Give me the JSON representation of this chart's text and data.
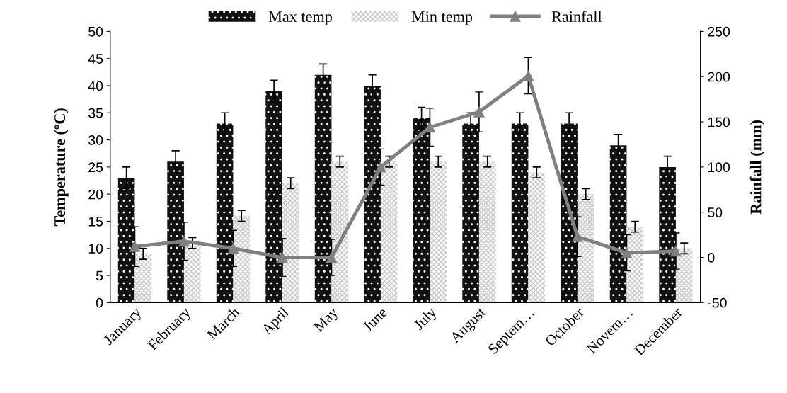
{
  "chart_data": {
    "type": "bar",
    "ylabel": "Temperature (ºC)",
    "y2label": "Rainfall (mm)",
    "categories": [
      "January",
      "February",
      "March",
      "April",
      "May",
      "June",
      "July",
      "August",
      "Septem…",
      "October",
      "Novem…",
      "December"
    ],
    "series": [
      {
        "name": "Max temp",
        "color": "#111111",
        "values": [
          23,
          26,
          33,
          39,
          42,
          40,
          34,
          33,
          33,
          33,
          29,
          25
        ],
        "errors": [
          2,
          2,
          2,
          2,
          2,
          2,
          2,
          2,
          2,
          2,
          2,
          2
        ]
      },
      {
        "name": "Min temp",
        "color": "#c8c8c8",
        "values": [
          9,
          11,
          16,
          22,
          26,
          26,
          26,
          26,
          24,
          20,
          14,
          10
        ],
        "errors": [
          1,
          1,
          1,
          1,
          1,
          1,
          1,
          1,
          1,
          1,
          1,
          1
        ]
      },
      {
        "name": "Rainfall",
        "type": "line",
        "axis": "y2",
        "color": "#808080",
        "marker": "triangle",
        "values": [
          12,
          18,
          10,
          0,
          0,
          100,
          144,
          161,
          201,
          23,
          5,
          7
        ],
        "errors": [
          22,
          21,
          20,
          21,
          20,
          20,
          21,
          22,
          20,
          22,
          20,
          20
        ]
      }
    ],
    "ylim": [
      0,
      50
    ],
    "yticks": [
      0,
      5,
      10,
      15,
      20,
      25,
      30,
      35,
      40,
      45,
      50
    ],
    "y2lim": [
      -50,
      250
    ],
    "y2ticks": [
      -50,
      0,
      50,
      100,
      150,
      200,
      250
    ],
    "legend": "top",
    "grid": false
  }
}
